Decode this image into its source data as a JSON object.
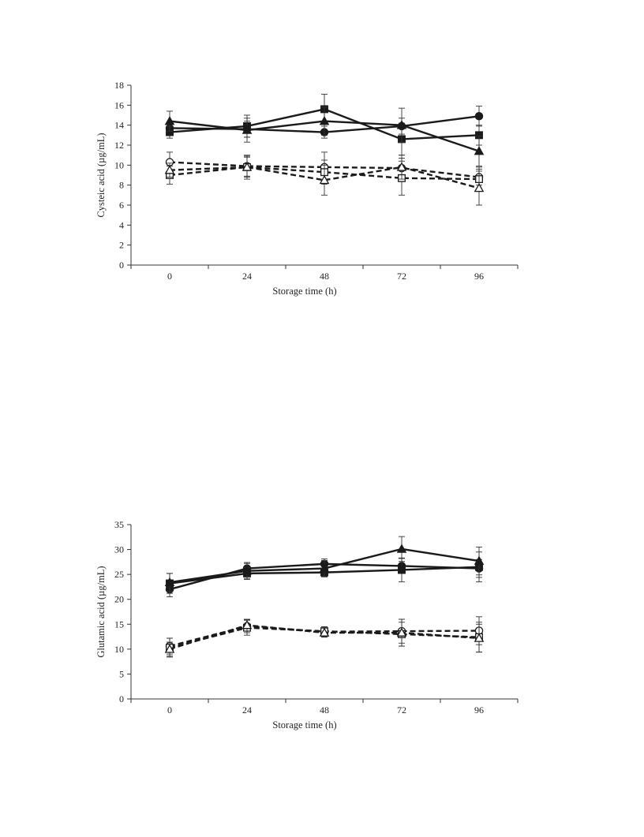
{
  "chart_data": [
    {
      "type": "line",
      "title": "",
      "xlabel": "Storage time (h)",
      "ylabel": "Cysteic acid (µg/mL)",
      "categories": [
        "0",
        "24",
        "48",
        "72",
        "96"
      ],
      "ylim": [
        0,
        18
      ],
      "yticks": [
        0,
        2,
        4,
        6,
        8,
        10,
        12,
        14,
        16,
        18
      ],
      "grid": false,
      "legend": "none",
      "series": [
        {
          "marker": "circle",
          "filled": true,
          "dash": false,
          "values": [
            13.7,
            13.6,
            13.3,
            13.9,
            14.9
          ],
          "errors": [
            0.5,
            0.8,
            0.6,
            0.8,
            1.0
          ]
        },
        {
          "marker": "square",
          "filled": true,
          "dash": false,
          "values": [
            13.3,
            13.9,
            15.6,
            12.6,
            13.0
          ],
          "errors": [
            0.6,
            1.1,
            1.5,
            1.6,
            1.0
          ]
        },
        {
          "marker": "triangle",
          "filled": true,
          "dash": false,
          "values": [
            14.4,
            13.5,
            14.4,
            14.0,
            11.4
          ],
          "errors": [
            1.0,
            1.2,
            1.4,
            1.7,
            1.5
          ]
        },
        {
          "marker": "circle",
          "filled": false,
          "dash": true,
          "values": [
            10.3,
            9.9,
            9.8,
            9.7,
            8.8
          ],
          "errors": [
            1.0,
            1.0,
            1.5,
            1.0,
            0.8
          ]
        },
        {
          "marker": "square",
          "filled": false,
          "dash": true,
          "values": [
            9.0,
            9.8,
            9.3,
            8.7,
            8.6
          ],
          "errors": [
            0.9,
            1.0,
            1.2,
            1.7,
            1.2
          ]
        },
        {
          "marker": "triangle",
          "filled": false,
          "dash": true,
          "values": [
            9.5,
            9.8,
            8.5,
            9.8,
            7.7
          ],
          "errors": [
            0.7,
            1.2,
            1.5,
            1.2,
            1.7
          ]
        }
      ]
    },
    {
      "type": "line",
      "title": "",
      "xlabel": "Storage time (h)",
      "ylabel": "Glutamic acid (µg/mL)",
      "categories": [
        "0",
        "24",
        "48",
        "72",
        "96"
      ],
      "ylim": [
        0,
        35
      ],
      "yticks": [
        0,
        5,
        10,
        15,
        20,
        25,
        30,
        35
      ],
      "grid": false,
      "legend": "none",
      "series": [
        {
          "marker": "circle",
          "filled": true,
          "dash": false,
          "values": [
            22.0,
            26.2,
            27.1,
            26.7,
            26.2
          ],
          "errors": [
            1.5,
            1.2,
            1.0,
            1.5,
            1.8
          ]
        },
        {
          "marker": "square",
          "filled": true,
          "dash": false,
          "values": [
            23.2,
            25.2,
            25.4,
            25.9,
            26.5
          ],
          "errors": [
            2.0,
            1.2,
            0.9,
            2.4,
            3.0
          ]
        },
        {
          "marker": "triangle",
          "filled": true,
          "dash": false,
          "values": [
            23.4,
            25.7,
            26.2,
            30.1,
            27.7
          ],
          "errors": [
            1.8,
            1.5,
            1.6,
            2.5,
            2.8
          ]
        },
        {
          "marker": "circle",
          "filled": false,
          "dash": true,
          "values": [
            10.6,
            14.6,
            13.5,
            13.6,
            13.7
          ],
          "errors": [
            1.6,
            1.3,
            1.0,
            2.4,
            2.8
          ]
        },
        {
          "marker": "square",
          "filled": false,
          "dash": true,
          "values": [
            10.3,
            14.3,
            13.6,
            13.0,
            12.4
          ],
          "errors": [
            1.9,
            1.5,
            0.9,
            2.4,
            3.0
          ]
        },
        {
          "marker": "triangle",
          "filled": false,
          "dash": true,
          "values": [
            10.0,
            14.8,
            13.3,
            13.3,
            12.2
          ],
          "errors": [
            1.4,
            1.2,
            0.9,
            2.7,
            2.8
          ]
        }
      ]
    }
  ]
}
